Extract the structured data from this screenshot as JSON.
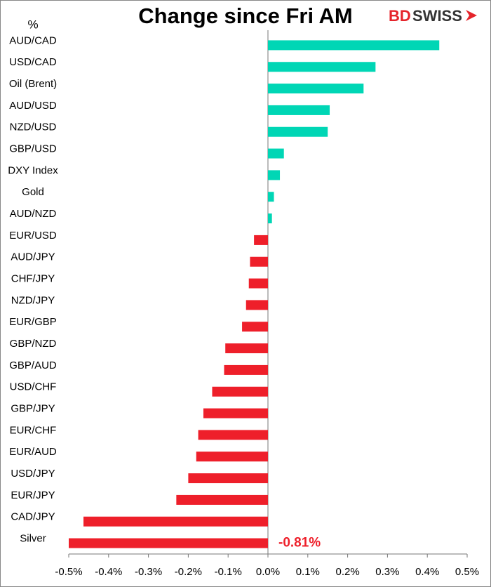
{
  "chart_data": {
    "type": "hbar",
    "title": "Change since Fri AM",
    "unit_label": "%",
    "logo": [
      "BD",
      "SWISS"
    ],
    "categories": [
      "AUD/CAD",
      "USD/CAD",
      "Oil (Brent)",
      "AUD/USD",
      "NZD/USD",
      "GBP/USD",
      "DXY Index",
      "Gold",
      "AUD/NZD",
      "EUR/USD",
      "AUD/JPY",
      "CHF/JPY",
      "NZD/JPY",
      "EUR/GBP",
      "GBP/NZD",
      "GBP/AUD",
      "USD/CHF",
      "GBP/JPY",
      "EUR/CHF",
      "EUR/AUD",
      "USD/JPY",
      "EUR/JPY",
      "CAD/JPY",
      "Silver"
    ],
    "values": [
      0.43,
      0.27,
      0.24,
      0.155,
      0.15,
      0.04,
      0.03,
      0.015,
      0.01,
      -0.035,
      -0.045,
      -0.048,
      -0.055,
      -0.065,
      -0.107,
      -0.11,
      -0.14,
      -0.162,
      -0.175,
      -0.18,
      -0.2,
      -0.23,
      -0.463,
      -0.81
    ],
    "value_labels": [
      null,
      null,
      null,
      null,
      null,
      null,
      null,
      null,
      null,
      null,
      null,
      null,
      null,
      null,
      null,
      null,
      null,
      null,
      null,
      null,
      null,
      null,
      null,
      "-0.81%"
    ],
    "colors": {
      "positive": "#00d6b5",
      "negative": "#ee1f2a"
    },
    "xlim": [
      -0.5,
      0.5
    ],
    "xticks": [
      {
        "value": -0.5,
        "label": "-0.5%"
      },
      {
        "value": -0.4,
        "label": "-0.4%"
      },
      {
        "value": -0.3,
        "label": "-0.3%"
      },
      {
        "value": -0.2,
        "label": "-0.2%"
      },
      {
        "value": -0.1,
        "label": "-0.1%"
      },
      {
        "value": 0,
        "label": "0.0%"
      },
      {
        "value": 0.1,
        "label": "0.1%"
      },
      {
        "value": 0.2,
        "label": "0.2%"
      },
      {
        "value": 0.3,
        "label": "0.3%"
      },
      {
        "value": 0.4,
        "label": "0.4%"
      },
      {
        "value": 0.5,
        "label": "0.5%"
      }
    ]
  }
}
